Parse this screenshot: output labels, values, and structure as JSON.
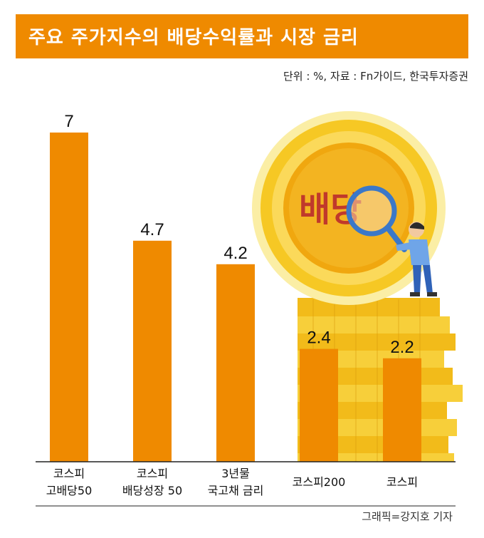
{
  "header": {
    "title": "주요 주가지수의 배당수익률과 시장 금리",
    "source": "단위 : %, 자료 : Fn가이드, 한국투자증권"
  },
  "illustration": {
    "coin_text": "배당"
  },
  "footer": {
    "credit": "그래픽=강지호 기자"
  },
  "colors": {
    "accent": "#ef8a00",
    "bar": "#ef8a00",
    "coin": "#f4c21c"
  },
  "chart_data": {
    "type": "bar",
    "categories": [
      [
        "코스피",
        "고배당50"
      ],
      [
        "코스피",
        "배당성장 50"
      ],
      [
        "3년물",
        "국고채 금리"
      ],
      [
        "코스피200"
      ],
      [
        "코스피"
      ]
    ],
    "values": [
      7,
      4.7,
      4.2,
      2.4,
      2.2
    ],
    "value_labels": [
      "7",
      "4.7",
      "4.2",
      "2.4",
      "2.2"
    ],
    "ylim": [
      0,
      7
    ],
    "grid": false,
    "legend": "none"
  }
}
